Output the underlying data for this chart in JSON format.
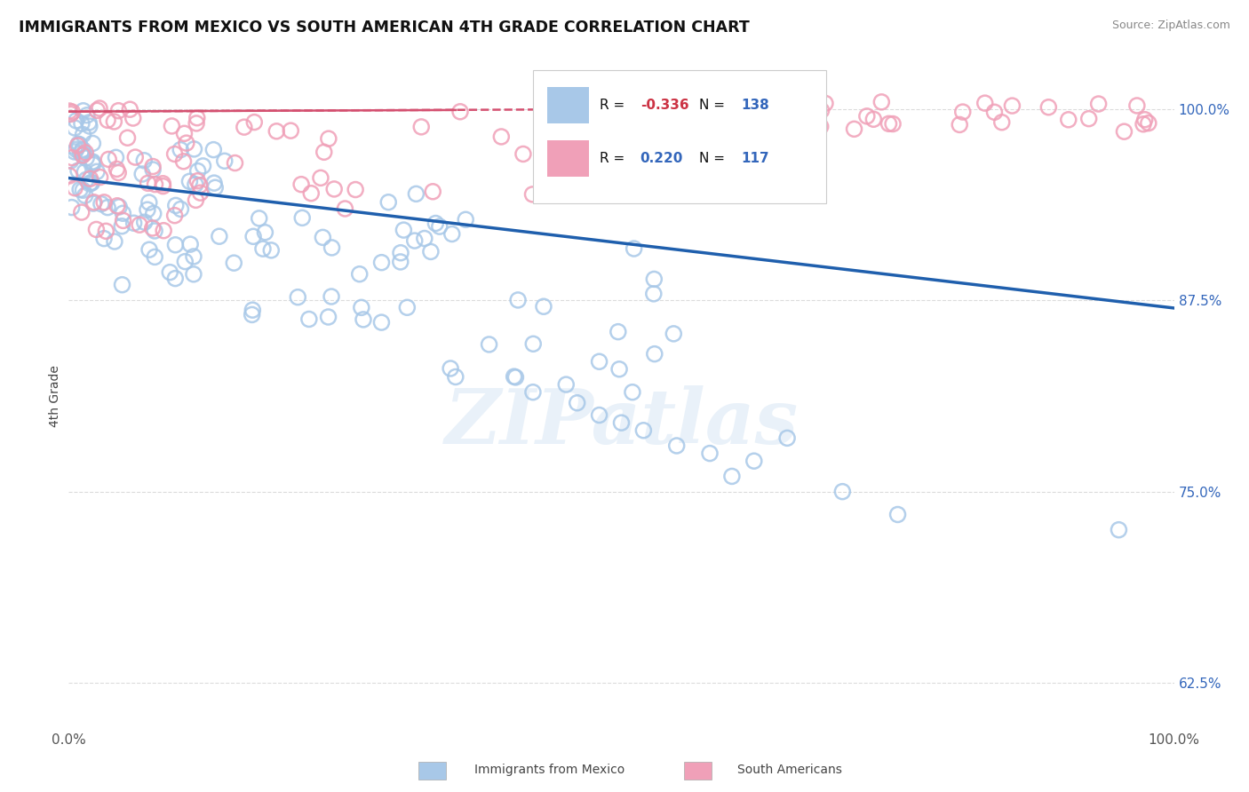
{
  "title": "IMMIGRANTS FROM MEXICO VS SOUTH AMERICAN 4TH GRADE CORRELATION CHART",
  "source": "Source: ZipAtlas.com",
  "ylabel": "4th Grade",
  "y_ticks": [
    0.625,
    0.75,
    0.875,
    1.0
  ],
  "y_tick_labels": [
    "62.5%",
    "75.0%",
    "87.5%",
    "100.0%"
  ],
  "legend1_label": "Immigrants from Mexico",
  "legend2_label": "South Americans",
  "r1": -0.336,
  "n1": 138,
  "r2": 0.22,
  "n2": 117,
  "color_blue": "#A8C8E8",
  "color_pink": "#F0A0B8",
  "trendline_blue": "#1F5FAD",
  "trendline_pink": "#D45070",
  "background_color": "#FFFFFF",
  "watermark": "ZIPatlas",
  "blue_trend_x0": 0.0,
  "blue_trend_y0": 0.955,
  "blue_trend_x1": 1.0,
  "blue_trend_y1": 0.87,
  "pink_trend_x0": 0.0,
  "pink_trend_y0": 0.9985,
  "pink_trend_x1": 0.65,
  "pink_trend_y1": 1.0005,
  "xlim_min": 0.0,
  "xlim_max": 1.0,
  "ylim_min": 0.595,
  "ylim_max": 1.03
}
